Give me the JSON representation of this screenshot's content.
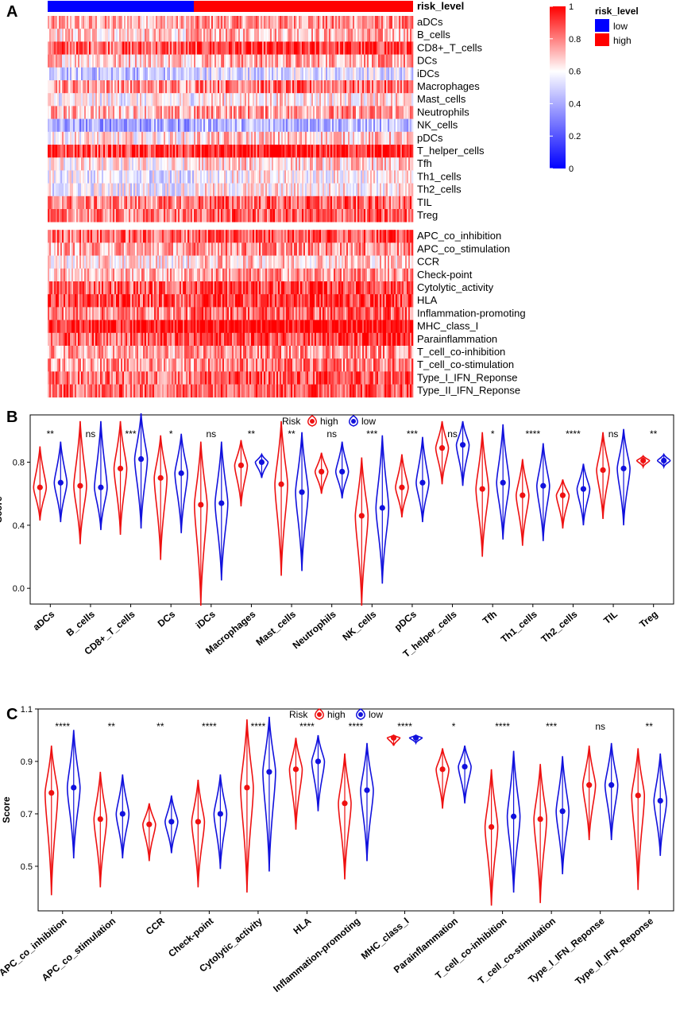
{
  "panels": {
    "a": "A",
    "b": "B",
    "c": "C"
  },
  "colors": {
    "high": "#ee1111",
    "low": "#1111dd",
    "heat_high": "#ff0000",
    "heat_mid": "#ffffff",
    "heat_low": "#0000ff"
  },
  "heatmap": {
    "annotation_label": "risk_level",
    "annotation": {
      "low_fraction": 0.4
    },
    "rows_group1": [
      "aDCs",
      "B_cells",
      "CD8+_T_cells",
      "DCs",
      "iDCs",
      "Macrophages",
      "Mast_cells",
      "Neutrophils",
      "NK_cells",
      "pDCs",
      "T_helper_cells",
      "Tfh",
      "Th1_cells",
      "Th2_cells",
      "TIL",
      "Treg"
    ],
    "rows_group2": [
      "APC_co_inhibition",
      "APC_co_stimulation",
      "CCR",
      "Check-point",
      "Cytolytic_activity",
      "HLA",
      "Inflammation-promoting",
      "MHC_class_I",
      "Parainflammation",
      "T_cell_co-inhibition",
      "T_cell_co-stimulation",
      "Type_I_IFN_Reponse",
      "Type_II_IFN_Reponse"
    ],
    "row_means_group1": [
      0.75,
      0.7,
      0.88,
      0.72,
      0.5,
      0.8,
      0.62,
      0.74,
      0.42,
      0.66,
      0.92,
      0.64,
      0.58,
      0.6,
      0.82,
      0.82
    ],
    "row_means_group2": [
      0.86,
      0.76,
      0.66,
      0.74,
      0.88,
      0.9,
      0.82,
      0.99,
      0.88,
      0.76,
      0.78,
      0.84,
      0.86
    ],
    "colorbar": {
      "ticks": [
        "1",
        "0.8",
        "0.6",
        "0.4",
        "0.2",
        "0"
      ]
    },
    "legend": {
      "title": "risk_level",
      "low": "low",
      "high": "high"
    }
  },
  "chart_data": [
    {
      "type": "violin",
      "title": "",
      "xlabel": "",
      "ylabel": "Score",
      "ylim": [
        -0.1,
        1.1
      ],
      "yticks": [
        "0.0",
        "0.4",
        "0.8"
      ],
      "legend": {
        "title": "Risk",
        "high": "high",
        "low": "low"
      },
      "categories": [
        "aDCs",
        "B_cells",
        "CD8+_T_cells",
        "DCs",
        "iDCs",
        "Macrophages",
        "Mast_cells",
        "Neutrophils",
        "NK_cells",
        "pDCs",
        "T_helper_cells",
        "Tfh",
        "Th1_cells",
        "Th2_cells",
        "TIL",
        "Treg"
      ],
      "significance": [
        "**",
        "ns",
        "***",
        "*",
        "ns",
        "**",
        "**",
        "ns",
        "***",
        "***",
        "ns",
        "*",
        "****",
        "****",
        "ns",
        "**"
      ],
      "series": [
        {
          "name": "high",
          "median": [
            0.64,
            0.65,
            0.76,
            0.7,
            0.53,
            0.78,
            0.66,
            0.74,
            0.46,
            0.64,
            0.89,
            0.63,
            0.59,
            0.59,
            0.75,
            0.81
          ],
          "min": [
            0.43,
            0.28,
            0.34,
            0.18,
            -0.11,
            0.52,
            0.08,
            0.6,
            -0.11,
            0.45,
            0.66,
            0.2,
            0.27,
            0.38,
            0.44,
            0.77
          ],
          "max": [
            0.9,
            1.06,
            1.06,
            0.97,
            0.93,
            0.94,
            1.06,
            0.86,
            0.83,
            0.85,
            1.06,
            0.99,
            0.82,
            0.69,
            0.99,
            0.84
          ]
        },
        {
          "name": "low",
          "median": [
            0.67,
            0.64,
            0.82,
            0.73,
            0.54,
            0.8,
            0.61,
            0.74,
            0.51,
            0.67,
            0.91,
            0.67,
            0.65,
            0.63,
            0.76,
            0.81
          ],
          "min": [
            0.42,
            0.37,
            0.38,
            0.35,
            0.05,
            0.7,
            0.11,
            0.57,
            0.03,
            0.42,
            0.65,
            0.31,
            0.3,
            0.4,
            0.4,
            0.77
          ],
          "max": [
            0.93,
            1.06,
            1.11,
            0.98,
            0.93,
            0.85,
            0.99,
            0.93,
            0.97,
            0.96,
            1.06,
            1.04,
            0.92,
            0.79,
            1.01,
            0.85
          ]
        }
      ]
    },
    {
      "type": "violin",
      "title": "",
      "xlabel": "",
      "ylabel": "Score",
      "ylim": [
        0.33,
        1.1
      ],
      "yticks": [
        "0.5",
        "0.7",
        "0.9",
        "1.1"
      ],
      "legend": {
        "title": "Risk",
        "high": "high",
        "low": "low"
      },
      "categories": [
        "APC_co_inhibition",
        "APC_co_stimulation",
        "CCR",
        "Check-point",
        "Cytolytic_activity",
        "HLA",
        "Inflammation-promoting",
        "MHC_class_I",
        "Parainflammation",
        "T_cell_co-inhibition",
        "T_cell_co-stimulation",
        "Type_I_IFN_Reponse",
        "Type_II_IFN_Reponse"
      ],
      "significance": [
        "****",
        "**",
        "**",
        "****",
        "****",
        "****",
        "****",
        "****",
        "*",
        "****",
        "***",
        "ns",
        "**"
      ],
      "series": [
        {
          "name": "high",
          "median": [
            0.78,
            0.68,
            0.66,
            0.67,
            0.8,
            0.87,
            0.74,
            0.99,
            0.87,
            0.65,
            0.68,
            0.81,
            0.77
          ],
          "min": [
            0.39,
            0.42,
            0.52,
            0.42,
            0.4,
            0.64,
            0.45,
            0.96,
            0.72,
            0.35,
            0.36,
            0.6,
            0.41
          ],
          "max": [
            0.96,
            0.86,
            0.74,
            0.83,
            1.06,
            0.99,
            0.93,
            1.0,
            0.95,
            0.87,
            0.89,
            0.96,
            0.95
          ]
        },
        {
          "name": "low",
          "median": [
            0.8,
            0.7,
            0.67,
            0.7,
            0.86,
            0.9,
            0.79,
            0.99,
            0.88,
            0.69,
            0.71,
            0.81,
            0.75
          ],
          "min": [
            0.53,
            0.53,
            0.55,
            0.49,
            0.48,
            0.71,
            0.52,
            0.97,
            0.74,
            0.4,
            0.47,
            0.6,
            0.54
          ],
          "max": [
            1.02,
            0.85,
            0.77,
            0.85,
            1.07,
            1.0,
            0.97,
            1.0,
            0.96,
            0.94,
            0.92,
            0.97,
            0.93
          ]
        }
      ]
    }
  ]
}
